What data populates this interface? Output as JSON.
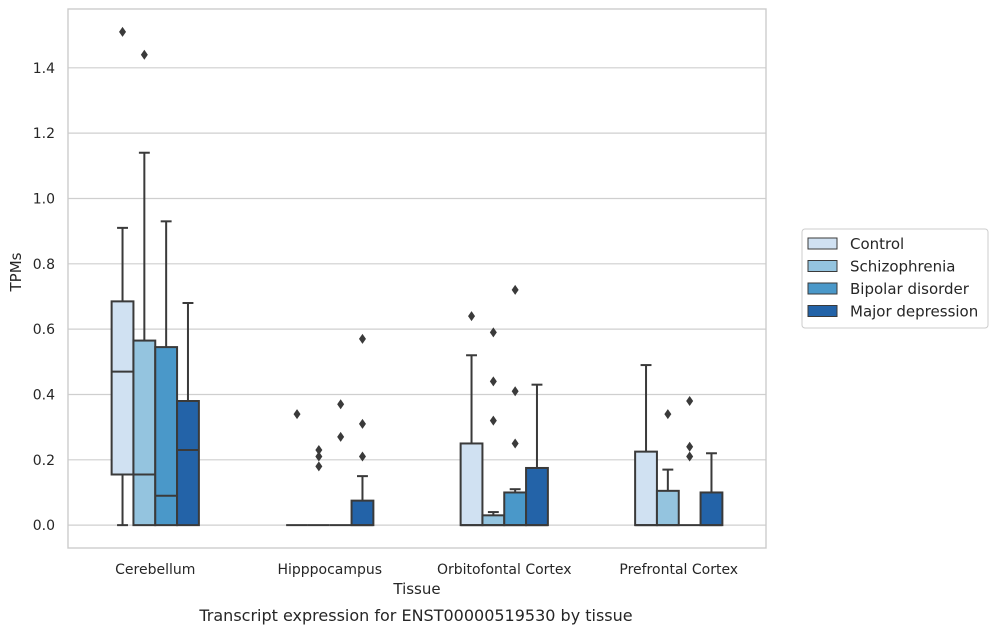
{
  "caption": "Transcript expression for ENST00000519530 by tissue",
  "chart_data": {
    "type": "boxplot",
    "xlabel": "Tissue",
    "ylabel": "TPMs",
    "ylim": [
      -0.07,
      1.58
    ],
    "yticks": [
      0.0,
      0.2,
      0.4,
      0.6,
      0.8,
      1.0,
      1.2,
      1.4
    ],
    "ytick_labels": [
      "0.0",
      "0.2",
      "0.4",
      "0.6",
      "0.8",
      "1.0",
      "1.2",
      "1.4"
    ],
    "grid": "horizontal",
    "legend_position": "right",
    "categories": [
      "Cerebellum",
      "Hipppocampus",
      "Orbitofontal Cortex",
      "Prefrontal Cortex"
    ],
    "series": [
      {
        "name": "Control",
        "color": "#d0e1f2",
        "boxes": [
          {
            "whislo": 0.0,
            "q1": 0.155,
            "med": 0.47,
            "q3": 0.685,
            "whishi": 0.91,
            "fliers": [
              1.51
            ]
          },
          {
            "whislo": 0.0,
            "q1": 0.0,
            "med": 0.0,
            "q3": 0.0,
            "whishi": 0.0,
            "fliers": [
              0.34
            ]
          },
          {
            "whislo": 0.0,
            "q1": 0.0,
            "med": 0.0,
            "q3": 0.25,
            "whishi": 0.52,
            "fliers": [
              0.64
            ]
          },
          {
            "whislo": 0.0,
            "q1": 0.0,
            "med": 0.0,
            "q3": 0.225,
            "whishi": 0.49,
            "fliers": []
          }
        ]
      },
      {
        "name": "Schizophrenia",
        "color": "#94c4df",
        "boxes": [
          {
            "whislo": 0.0,
            "q1": 0.0,
            "med": 0.155,
            "q3": 0.565,
            "whishi": 1.14,
            "fliers": [
              1.44
            ]
          },
          {
            "whislo": 0.0,
            "q1": 0.0,
            "med": 0.0,
            "q3": 0.0,
            "whishi": 0.0,
            "fliers": [
              0.18,
              0.21,
              0.23
            ]
          },
          {
            "whislo": 0.0,
            "q1": 0.0,
            "med": 0.0,
            "q3": 0.03,
            "whishi": 0.04,
            "fliers": [
              0.32,
              0.44,
              0.59
            ]
          },
          {
            "whislo": 0.0,
            "q1": 0.0,
            "med": 0.0,
            "q3": 0.105,
            "whishi": 0.17,
            "fliers": [
              0.34
            ]
          }
        ]
      },
      {
        "name": "Bipolar disorder",
        "color": "#4a98c9",
        "boxes": [
          {
            "whislo": 0.0,
            "q1": 0.0,
            "med": 0.09,
            "q3": 0.545,
            "whishi": 0.93,
            "fliers": []
          },
          {
            "whislo": 0.0,
            "q1": 0.0,
            "med": 0.0,
            "q3": 0.0,
            "whishi": 0.0,
            "fliers": [
              0.27,
              0.37
            ]
          },
          {
            "whislo": 0.0,
            "q1": 0.0,
            "med": 0.0,
            "q3": 0.1,
            "whishi": 0.11,
            "fliers": [
              0.25,
              0.41,
              0.72
            ]
          },
          {
            "whislo": 0.0,
            "q1": 0.0,
            "med": 0.0,
            "q3": 0.0,
            "whishi": 0.0,
            "fliers": [
              0.21,
              0.24,
              0.38
            ]
          }
        ]
      },
      {
        "name": "Major depression",
        "color": "#2363a8",
        "boxes": [
          {
            "whislo": 0.0,
            "q1": 0.0,
            "med": 0.23,
            "q3": 0.38,
            "whishi": 0.68,
            "fliers": []
          },
          {
            "whislo": 0.0,
            "q1": 0.0,
            "med": 0.0,
            "q3": 0.075,
            "whishi": 0.15,
            "fliers": [
              0.21,
              0.31,
              0.57
            ]
          },
          {
            "whislo": 0.0,
            "q1": 0.0,
            "med": 0.0,
            "q3": 0.175,
            "whishi": 0.43,
            "fliers": []
          },
          {
            "whislo": 0.0,
            "q1": 0.0,
            "med": 0.0,
            "q3": 0.1,
            "whishi": 0.22,
            "fliers": []
          }
        ]
      }
    ]
  }
}
